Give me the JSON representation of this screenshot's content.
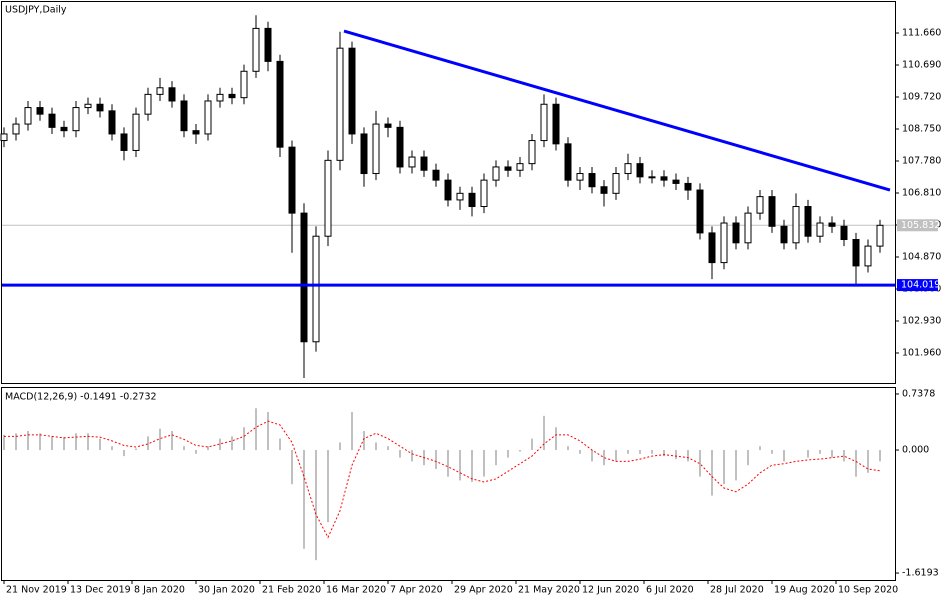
{
  "chart_data": [
    {
      "type": "candlestick",
      "title": "USDJPY,Daily",
      "x": [
        0,
        3,
        6,
        9,
        12,
        15,
        18,
        21,
        24,
        27,
        30,
        33,
        36,
        39,
        42,
        45,
        48,
        51,
        54,
        57,
        60,
        63,
        66,
        69,
        72,
        75,
        78,
        81,
        84,
        87,
        90,
        93,
        96,
        99,
        102,
        105,
        108,
        111,
        114,
        117,
        120,
        123,
        126,
        129,
        132,
        135,
        138,
        141,
        144,
        147,
        150,
        153,
        156,
        159,
        162,
        165,
        168,
        171,
        174,
        177,
        180,
        183,
        186,
        189,
        192,
        195,
        198,
        201,
        204,
        207,
        210,
        213,
        216,
        219
      ],
      "open": [
        108.4,
        108.6,
        108.9,
        109.4,
        109.2,
        108.8,
        108.7,
        109.4,
        109.5,
        109.3,
        108.6,
        108.1,
        109.2,
        109.8,
        110.0,
        109.6,
        108.7,
        108.6,
        109.6,
        109.8,
        109.7,
        110.5,
        111.8,
        110.8,
        108.2,
        106.2,
        102.3,
        105.5,
        107.8,
        111.2,
        108.6,
        107.4,
        108.9,
        108.8,
        107.6,
        107.9,
        107.5,
        107.2,
        106.6,
        106.8,
        106.4,
        107.2,
        107.6,
        107.5,
        107.7,
        108.4,
        109.5,
        108.3,
        107.2,
        107.4,
        107.0,
        106.8,
        107.4,
        107.7,
        107.3,
        107.3,
        107.2,
        107.1,
        106.9,
        105.6,
        104.7,
        105.9,
        105.3,
        106.2,
        106.7,
        105.8,
        105.3,
        106.4,
        105.5,
        105.9,
        105.8,
        105.4,
        104.6,
        105.2
      ],
      "high": [
        108.8,
        109.1,
        109.6,
        109.6,
        109.4,
        109.0,
        109.6,
        109.7,
        109.7,
        109.5,
        108.8,
        109.4,
        110.0,
        110.3,
        110.2,
        109.8,
        108.9,
        109.8,
        110.0,
        110.0,
        110.7,
        112.2,
        112.0,
        111.0,
        108.4,
        106.5,
        105.8,
        108.1,
        111.7,
        111.4,
        108.8,
        109.3,
        109.1,
        109.0,
        108.1,
        108.1,
        107.7,
        107.4,
        107.0,
        107.0,
        107.4,
        107.8,
        107.8,
        107.9,
        108.6,
        109.8,
        109.7,
        108.5,
        107.6,
        107.6,
        107.2,
        107.6,
        108.0,
        107.9,
        107.5,
        107.5,
        107.4,
        107.3,
        107.1,
        105.8,
        106.1,
        106.1,
        106.4,
        106.9,
        106.9,
        106.0,
        106.8,
        106.6,
        106.1,
        106.1,
        106.0,
        105.6,
        105.4,
        106.0
      ],
      "low": [
        108.2,
        108.4,
        108.7,
        109.0,
        108.6,
        108.5,
        108.5,
        109.2,
        109.1,
        108.4,
        107.8,
        107.9,
        109.0,
        109.6,
        109.4,
        108.5,
        108.3,
        108.4,
        109.4,
        109.5,
        109.5,
        110.3,
        110.5,
        107.9,
        105.0,
        101.2,
        102.0,
        105.2,
        107.5,
        108.3,
        107.0,
        107.2,
        108.5,
        107.4,
        107.4,
        107.3,
        107.0,
        106.4,
        106.3,
        106.1,
        106.2,
        107.0,
        107.3,
        107.3,
        107.5,
        108.2,
        108.1,
        107.0,
        106.9,
        106.8,
        106.4,
        106.6,
        107.2,
        107.1,
        107.1,
        107.0,
        106.9,
        106.6,
        105.4,
        104.2,
        104.5,
        105.1,
        105.1,
        106.0,
        105.6,
        105.1,
        105.1,
        105.3,
        105.3,
        105.6,
        105.2,
        104.0,
        104.4,
        105.0
      ],
      "close": [
        108.6,
        108.9,
        109.4,
        109.2,
        108.8,
        108.7,
        109.4,
        109.5,
        109.3,
        108.6,
        108.1,
        109.2,
        109.8,
        110.0,
        109.6,
        108.7,
        108.6,
        109.6,
        109.8,
        109.7,
        110.5,
        111.8,
        110.8,
        108.2,
        106.2,
        102.3,
        105.5,
        107.8,
        111.2,
        108.6,
        107.4,
        108.9,
        108.8,
        107.6,
        107.9,
        107.5,
        107.2,
        106.6,
        106.8,
        106.4,
        107.2,
        107.6,
        107.5,
        107.7,
        108.4,
        109.5,
        108.3,
        107.2,
        107.4,
        107.0,
        106.8,
        107.4,
        107.7,
        107.3,
        107.3,
        107.2,
        107.1,
        106.9,
        105.6,
        104.7,
        105.9,
        105.3,
        106.2,
        106.7,
        105.8,
        105.3,
        106.4,
        105.5,
        105.9,
        105.8,
        105.4,
        104.6,
        105.2,
        105.83
      ],
      "xlim": [
        -1,
        222.75
      ],
      "ylim": [
        101.05,
        112.57
      ],
      "yticks": [
        {
          "value": 111.66,
          "label": "111.660"
        },
        {
          "value": 110.69,
          "label": "110.690"
        },
        {
          "value": 109.72,
          "label": "109.720"
        },
        {
          "value": 108.75,
          "label": "108.750"
        },
        {
          "value": 107.78,
          "label": "107.780"
        },
        {
          "value": 106.81,
          "label": "106.810"
        },
        {
          "value": 105.84,
          "label": "105.840"
        },
        {
          "value": 104.87,
          "label": "104.870"
        },
        {
          "value": 103.9,
          "label": "103.900"
        },
        {
          "value": 102.93,
          "label": "102.930"
        },
        {
          "value": 101.96,
          "label": "101.960"
        }
      ],
      "xticks": [
        {
          "value": 0,
          "label": "21 Nov 2019"
        },
        {
          "value": 16,
          "label": "13 Dec 2019"
        },
        {
          "value": 32,
          "label": "8 Jan 2020"
        },
        {
          "value": 48,
          "label": "30 Jan 2020"
        },
        {
          "value": 64,
          "label": "21 Feb 2020"
        },
        {
          "value": 80,
          "label": "16 Mar 2020"
        },
        {
          "value": 96,
          "label": "7 Apr 2020"
        },
        {
          "value": 112,
          "label": "29 Apr 2020"
        },
        {
          "value": 128,
          "label": "21 May 2020"
        },
        {
          "value": 144,
          "label": "12 Jun 2020"
        },
        {
          "value": 160,
          "label": "6 Jul 2020"
        },
        {
          "value": 176,
          "label": "28 Jul 2020"
        },
        {
          "value": 192,
          "label": "19 Aug 2020"
        },
        {
          "value": 208,
          "label": "10 Sep 2020"
        }
      ],
      "current_price": {
        "value": 105.832,
        "label": "105.832"
      },
      "support_line": {
        "value": 104.019,
        "label": "104.019"
      },
      "trendline": {
        "x": [
          85,
          221.5
        ],
        "y": [
          111.72,
          106.9
        ]
      },
      "color": "#000000",
      "line_color": "#0000ff",
      "price_line_color": "#c0c0c0"
    },
    {
      "type": "macd",
      "title": "MACD(12,26,9) -0.1491 -0.2732",
      "x": [
        0,
        3,
        6,
        9,
        12,
        15,
        18,
        21,
        24,
        27,
        30,
        33,
        36,
        39,
        42,
        45,
        48,
        51,
        54,
        57,
        60,
        63,
        66,
        69,
        72,
        75,
        78,
        81,
        84,
        87,
        90,
        93,
        96,
        99,
        102,
        105,
        108,
        111,
        114,
        117,
        120,
        123,
        126,
        129,
        132,
        135,
        138,
        141,
        144,
        147,
        150,
        153,
        156,
        159,
        162,
        165,
        168,
        171,
        174,
        177,
        180,
        183,
        186,
        189,
        192,
        195,
        198,
        201,
        204,
        207,
        210,
        213,
        216,
        219
      ],
      "series": [
        {
          "name": "MACD",
          "color": "#c0c0c0",
          "values": [
            0.2,
            0.22,
            0.25,
            0.22,
            0.18,
            0.17,
            0.22,
            0.22,
            0.15,
            0.05,
            -0.08,
            0.02,
            0.18,
            0.28,
            0.25,
            0.05,
            -0.05,
            0.05,
            0.15,
            0.18,
            0.3,
            0.55,
            0.5,
            0.15,
            -0.45,
            -1.3,
            -1.45,
            -0.95,
            0.1,
            0.5,
            0.25,
            0.1,
            0.05,
            -0.1,
            -0.15,
            -0.2,
            -0.25,
            -0.35,
            -0.4,
            -0.42,
            -0.35,
            -0.2,
            -0.1,
            -0.02,
            0.15,
            0.45,
            0.3,
            0.05,
            -0.05,
            -0.15,
            -0.2,
            -0.15,
            -0.05,
            -0.05,
            -0.05,
            -0.08,
            -0.12,
            -0.15,
            -0.35,
            -0.6,
            -0.45,
            -0.4,
            -0.2,
            0.05,
            -0.05,
            -0.15,
            0.0,
            -0.1,
            -0.05,
            -0.1,
            -0.15,
            -0.35,
            -0.3,
            -0.1491
          ]
        },
        {
          "name": "Signal",
          "color": "#ff0000",
          "values": [
            0.18,
            0.18,
            0.2,
            0.2,
            0.18,
            0.16,
            0.17,
            0.18,
            0.17,
            0.12,
            0.06,
            0.04,
            0.08,
            0.15,
            0.2,
            0.14,
            0.06,
            0.04,
            0.08,
            0.12,
            0.18,
            0.3,
            0.38,
            0.33,
            0.1,
            -0.35,
            -0.85,
            -1.15,
            -0.8,
            -0.2,
            0.15,
            0.22,
            0.15,
            0.05,
            -0.05,
            -0.1,
            -0.15,
            -0.22,
            -0.3,
            -0.38,
            -0.42,
            -0.38,
            -0.28,
            -0.18,
            -0.08,
            0.08,
            0.2,
            0.2,
            0.12,
            0.0,
            -0.1,
            -0.15,
            -0.15,
            -0.12,
            -0.08,
            -0.06,
            -0.08,
            -0.1,
            -0.18,
            -0.35,
            -0.5,
            -0.55,
            -0.45,
            -0.3,
            -0.2,
            -0.18,
            -0.15,
            -0.13,
            -0.12,
            -0.1,
            -0.08,
            -0.15,
            -0.25,
            -0.2732
          ]
        }
      ],
      "xlim": [
        -1,
        222.75
      ],
      "ylim": [
        -1.7109,
        0.8163
      ],
      "yticks": [
        0.7378,
        {
          "value": 0,
          "label": "0.000"
        },
        -1.6193
      ]
    }
  ]
}
